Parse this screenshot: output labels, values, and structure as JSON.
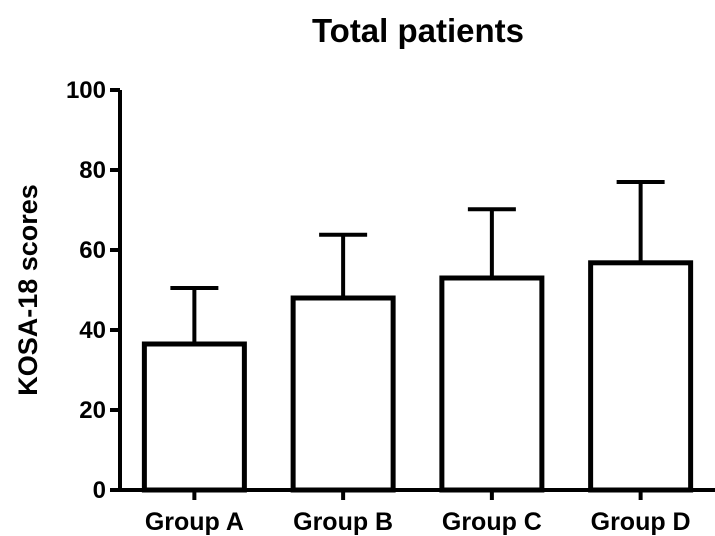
{
  "chart_data": {
    "type": "bar",
    "title": "Total patients",
    "xlabel": "",
    "ylabel": "KOSA-18 scores",
    "categories": [
      "Group A",
      "Group B",
      "Group C",
      "Group D"
    ],
    "values": [
      36.5,
      48,
      53,
      56.8
    ],
    "error_upper": [
      50.5,
      63.8,
      70.2,
      77
    ],
    "ylim": [
      0,
      100
    ],
    "yticks": [
      0,
      20,
      40,
      60,
      80,
      100
    ],
    "yticks_labels": [
      "0",
      "20",
      "40",
      "60",
      "80",
      "100"
    ],
    "grid": false,
    "legend": "none",
    "colors": {
      "bar_fill": "#ffffff",
      "stroke": "#000000"
    }
  }
}
